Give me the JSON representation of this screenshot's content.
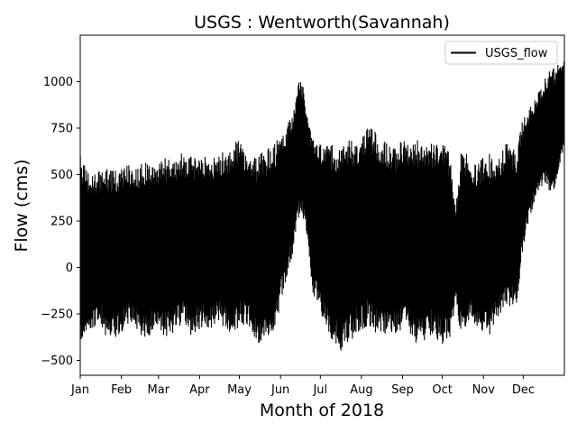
{
  "chart_data": {
    "type": "line",
    "title": "USGS : Wentworth(Savannah)",
    "xlabel": "Month of 2018",
    "ylabel": "Flow (cms)",
    "x_unit": "day of year 2018",
    "xlim": [
      1,
      366
    ],
    "ylim": [
      -580,
      1250
    ],
    "yticks": [
      -500,
      -250,
      0,
      250,
      500,
      750,
      1000
    ],
    "xticks": [
      {
        "label": "Jan",
        "x": 1
      },
      {
        "label": "Feb",
        "x": 32
      },
      {
        "label": "Mar",
        "x": 60
      },
      {
        "label": "Apr",
        "x": 91
      },
      {
        "label": "May",
        "x": 121
      },
      {
        "label": "Jun",
        "x": 152
      },
      {
        "label": "Jul",
        "x": 182
      },
      {
        "label": "Aug",
        "x": 213
      },
      {
        "label": "Sep",
        "x": 244
      },
      {
        "label": "Oct",
        "x": 274
      },
      {
        "label": "Nov",
        "x": 305
      },
      {
        "label": "Dec",
        "x": 335
      }
    ],
    "legend": {
      "position": "top-right"
    },
    "series": [
      {
        "name": "USGS_flow",
        "color": "#000000",
        "envelope": {
          "x": [
            1,
            8,
            15,
            22,
            29,
            36,
            43,
            50,
            57,
            64,
            71,
            78,
            85,
            92,
            99,
            106,
            113,
            120,
            127,
            134,
            141,
            148,
            155,
            162,
            166,
            169,
            172,
            176,
            183,
            190,
            197,
            204,
            211,
            218,
            225,
            232,
            239,
            246,
            253,
            260,
            267,
            274,
            280,
            284,
            288,
            292,
            295,
            302,
            309,
            316,
            323,
            330,
            334,
            340,
            346,
            352,
            358,
            366
          ],
          "upper": [
            640,
            520,
            540,
            560,
            540,
            590,
            560,
            600,
            580,
            620,
            600,
            640,
            620,
            650,
            600,
            640,
            660,
            720,
            650,
            620,
            660,
            700,
            760,
            880,
            1050,
            1000,
            900,
            720,
            680,
            690,
            680,
            720,
            700,
            820,
            740,
            700,
            680,
            720,
            720,
            690,
            690,
            700,
            650,
            320,
            640,
            650,
            560,
            600,
            640,
            600,
            700,
            640,
            800,
            880,
            950,
            1050,
            1100,
            1120
          ],
          "lower": [
            -450,
            -400,
            -300,
            -420,
            -400,
            -330,
            -350,
            -420,
            -360,
            -400,
            -380,
            -320,
            -400,
            -350,
            -370,
            -320,
            -380,
            -350,
            -330,
            -450,
            -430,
            -350,
            -120,
            80,
            260,
            250,
            150,
            -150,
            -280,
            -420,
            -480,
            -430,
            -380,
            -350,
            -390,
            -410,
            -380,
            -350,
            -440,
            -420,
            -380,
            -450,
            -420,
            -200,
            -380,
            -400,
            -300,
            -380,
            -400,
            -300,
            -220,
            -250,
            50,
            250,
            400,
            430,
            350,
            650
          ]
        }
      }
    ]
  }
}
